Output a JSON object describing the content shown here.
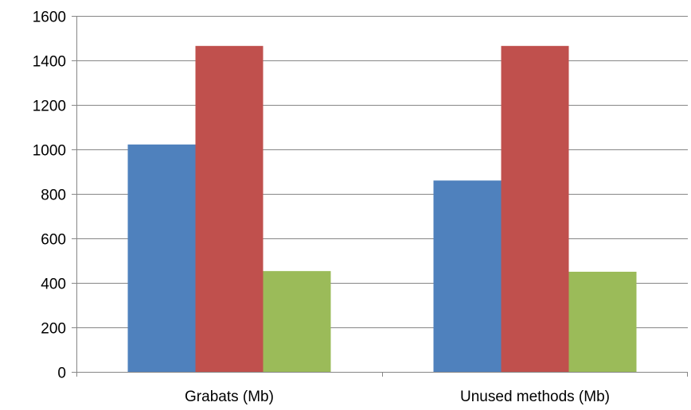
{
  "chart_data": {
    "type": "bar",
    "categories": [
      "Grabats (Mb)",
      "Unused methods (Mb)"
    ],
    "series": [
      {
        "values": [
          1022,
          860
        ],
        "color": "#4f81bd"
      },
      {
        "values": [
          1465,
          1465
        ],
        "color": "#c0504d"
      },
      {
        "values": [
          453,
          450
        ],
        "color": "#9bbb59"
      }
    ],
    "ylim": [
      0,
      1600
    ],
    "yticks": [
      0,
      200,
      400,
      600,
      800,
      1000,
      1200,
      1400,
      1600
    ],
    "grid": true,
    "legend": "none",
    "title": "",
    "xlabel": "",
    "ylabel": ""
  }
}
